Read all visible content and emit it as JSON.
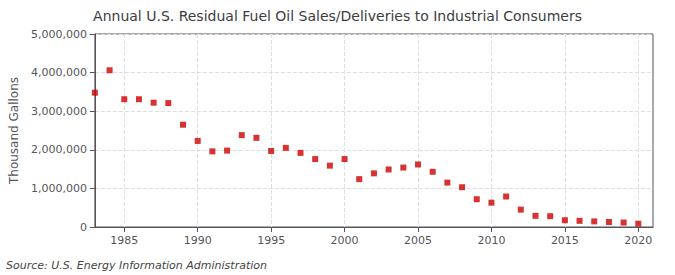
{
  "chart_data": {
    "type": "scatter",
    "title": "Annual U.S. Residual Fuel Oil Sales/Deliveries to Industrial Consumers",
    "ylabel": "Thousand Gallons",
    "annotations": [
      "Source: U.S. Energy Information Administration"
    ],
    "x": [
      1983,
      1984,
      1985,
      1986,
      1987,
      1988,
      1989,
      1990,
      1991,
      1992,
      1993,
      1994,
      1995,
      1996,
      1997,
      1998,
      1999,
      2000,
      2001,
      2002,
      2003,
      2004,
      2005,
      2006,
      2007,
      2008,
      2009,
      2010,
      2011,
      2012,
      2013,
      2014,
      2015,
      2016,
      2017,
      2018,
      2019,
      2020
    ],
    "values": [
      3480000,
      4060000,
      3310000,
      3310000,
      3220000,
      3210000,
      2650000,
      2230000,
      1960000,
      1980000,
      2380000,
      2310000,
      1970000,
      2050000,
      1920000,
      1760000,
      1590000,
      1760000,
      1240000,
      1390000,
      1490000,
      1540000,
      1620000,
      1430000,
      1150000,
      1030000,
      720000,
      630000,
      790000,
      450000,
      290000,
      280000,
      175000,
      160000,
      145000,
      130000,
      115000,
      85000
    ],
    "color": "#cc0000",
    "marker": "square",
    "xlim": [
      1983,
      2021
    ],
    "xticks": [
      1985,
      1990,
      1995,
      2000,
      2005,
      2010,
      2015,
      2020
    ],
    "ylim": [
      0,
      5000000
    ],
    "yticks": [
      0,
      {
        "value": 1000000,
        "label": "1,000,000"
      },
      {
        "value": 2000000,
        "label": "2,000,000"
      },
      {
        "value": 3000000,
        "label": "3,000,000"
      },
      {
        "value": 4000000,
        "label": "4,000,000"
      },
      {
        "value": 5000000,
        "label": "5,000,000"
      }
    ],
    "grid": true
  }
}
